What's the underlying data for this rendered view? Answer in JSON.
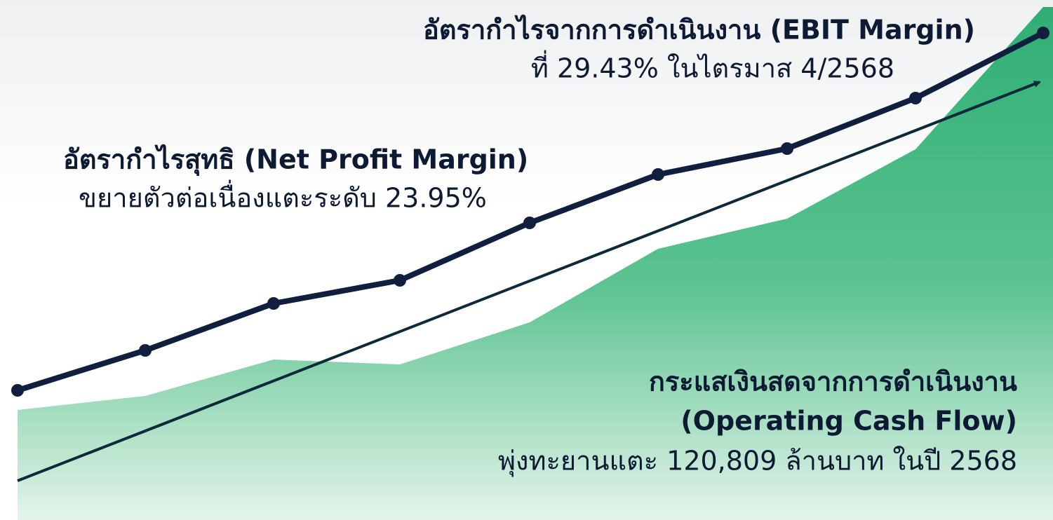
{
  "annotations": [
    {
      "title": "อัตรากำไรจากการดำเนินงาน (EBIT Margin)",
      "body": "ที่ 29.43% ในไตรมาส 4/2568"
    },
    {
      "title": "อัตรากำไรสุทธิ (Net Profit Margin)",
      "body": "ขยายตัวต่อเนื่องแตะระดับ 23.95%"
    },
    {
      "title": "กระแสเงินสดจากการดำเนินงาน",
      "subtitle": "(Operating Cash Flow)",
      "body": "พุ่งทะยานแตะ 120,809 ล้านบาท ในปี 2568"
    }
  ]
}
